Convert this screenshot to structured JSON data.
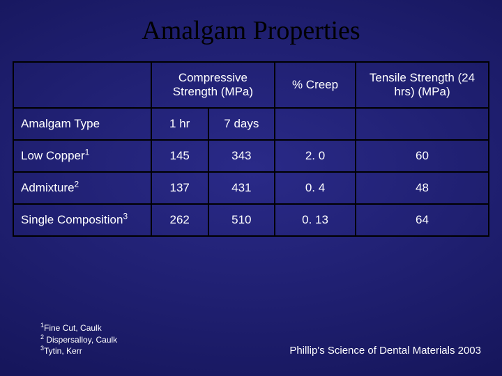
{
  "title": "Amalgam Properties",
  "title_color": "#000000",
  "title_fontsize": 38,
  "background": {
    "center": "#2a2a88",
    "mid": "#1f1f70",
    "edge": "#0e0e4a"
  },
  "table": {
    "border_color": "#000000",
    "text_color": "#ffffff",
    "fontsize": 17,
    "column_widths_pct": [
      29,
      12,
      14,
      17,
      28
    ],
    "header_row1": {
      "empty": "",
      "compressive": "Compressive Strength (MPa)",
      "creep": "% Creep",
      "tensile": "Tensile Strength (24 hrs) (MPa)"
    },
    "header_row2": {
      "type_label": "Amalgam Type",
      "sub1": "1 hr",
      "sub2": "7 days",
      "empty1": "",
      "empty2": ""
    },
    "rows": [
      {
        "label": "Low Copper",
        "sup": "1",
        "v1": "145",
        "v2": "343",
        "creep": "2. 0",
        "tensile": "60"
      },
      {
        "label": "Admixture",
        "sup": "2",
        "v1": "137",
        "v2": "431",
        "creep": "0. 4",
        "tensile": "48"
      },
      {
        "label": "Single Composition",
        "sup": "3",
        "v1": "262",
        "v2": "510",
        "creep": "0. 13",
        "tensile": "64"
      }
    ]
  },
  "footnotes": [
    {
      "sup": "1",
      "text": "Fine Cut, Caulk"
    },
    {
      "sup": "2",
      "text": " Dispersalloy, Caulk"
    },
    {
      "sup": "3",
      "text": "Tytin, Kerr"
    }
  ],
  "citation": "Phillip's Science of Dental Materials 2003",
  "footnote_fontsize": 12,
  "citation_fontsize": 15
}
